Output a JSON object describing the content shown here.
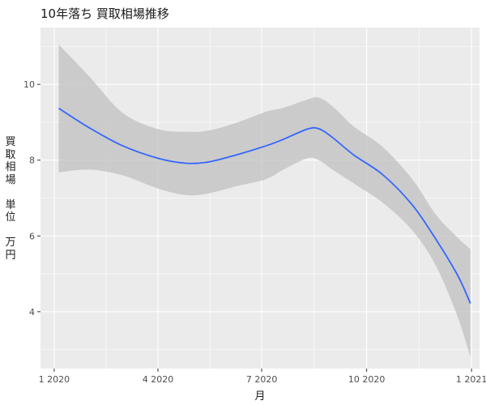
{
  "chart_data": {
    "type": "line",
    "title": "10年落ち 買取相場推移",
    "xlabel": "月",
    "ylabel": "買取相場　単位　万円",
    "x_ticks": [
      "1 2020",
      "4 2020",
      "7 2020",
      "10 2020",
      "1 2021"
    ],
    "x_domain": [
      "2019-12-20",
      "2021-01-08"
    ],
    "ylim": [
      2.5,
      11.5
    ],
    "y_ticks": [
      4,
      6,
      8,
      10
    ],
    "grid": true,
    "series": [
      {
        "color": "#3366FF",
        "points": [
          {
            "x": "2020-01-05",
            "y": 9.37
          },
          {
            "x": "2020-02-01",
            "y": 8.85
          },
          {
            "x": "2020-03-01",
            "y": 8.38
          },
          {
            "x": "2020-04-01",
            "y": 8.05
          },
          {
            "x": "2020-04-25",
            "y": 7.92
          },
          {
            "x": "2020-05-15",
            "y": 7.95
          },
          {
            "x": "2020-06-10",
            "y": 8.15
          },
          {
            "x": "2020-07-05",
            "y": 8.38
          },
          {
            "x": "2020-07-20",
            "y": 8.55
          },
          {
            "x": "2020-08-10",
            "y": 8.82
          },
          {
            "x": "2020-08-20",
            "y": 8.83
          },
          {
            "x": "2020-09-01",
            "y": 8.6
          },
          {
            "x": "2020-09-20",
            "y": 8.13
          },
          {
            "x": "2020-10-15",
            "y": 7.62
          },
          {
            "x": "2020-11-10",
            "y": 6.82
          },
          {
            "x": "2020-12-01",
            "y": 5.9
          },
          {
            "x": "2020-12-20",
            "y": 4.95
          },
          {
            "x": "2020-12-31",
            "y": 4.22
          }
        ],
        "ci_upper": [
          {
            "x": "2020-01-05",
            "y": 11.05
          },
          {
            "x": "2020-02-01",
            "y": 10.2
          },
          {
            "x": "2020-03-01",
            "y": 9.25
          },
          {
            "x": "2020-04-01",
            "y": 8.82
          },
          {
            "x": "2020-04-25",
            "y": 8.75
          },
          {
            "x": "2020-05-15",
            "y": 8.78
          },
          {
            "x": "2020-06-10",
            "y": 9.0
          },
          {
            "x": "2020-07-05",
            "y": 9.28
          },
          {
            "x": "2020-07-20",
            "y": 9.38
          },
          {
            "x": "2020-08-10",
            "y": 9.6
          },
          {
            "x": "2020-08-20",
            "y": 9.65
          },
          {
            "x": "2020-09-01",
            "y": 9.42
          },
          {
            "x": "2020-09-20",
            "y": 8.88
          },
          {
            "x": "2020-10-15",
            "y": 8.35
          },
          {
            "x": "2020-11-10",
            "y": 7.5
          },
          {
            "x": "2020-12-01",
            "y": 6.55
          },
          {
            "x": "2020-12-20",
            "y": 5.95
          },
          {
            "x": "2020-12-31",
            "y": 5.65
          }
        ],
        "ci_lower": [
          {
            "x": "2020-01-05",
            "y": 7.68
          },
          {
            "x": "2020-02-01",
            "y": 7.75
          },
          {
            "x": "2020-03-01",
            "y": 7.6
          },
          {
            "x": "2020-04-01",
            "y": 7.25
          },
          {
            "x": "2020-04-25",
            "y": 7.08
          },
          {
            "x": "2020-05-15",
            "y": 7.12
          },
          {
            "x": "2020-06-10",
            "y": 7.32
          },
          {
            "x": "2020-07-05",
            "y": 7.5
          },
          {
            "x": "2020-07-20",
            "y": 7.75
          },
          {
            "x": "2020-08-10",
            "y": 8.05
          },
          {
            "x": "2020-08-20",
            "y": 8.0
          },
          {
            "x": "2020-09-01",
            "y": 7.75
          },
          {
            "x": "2020-09-20",
            "y": 7.38
          },
          {
            "x": "2020-10-15",
            "y": 6.88
          },
          {
            "x": "2020-11-10",
            "y": 6.15
          },
          {
            "x": "2020-12-01",
            "y": 5.2
          },
          {
            "x": "2020-12-20",
            "y": 3.85
          },
          {
            "x": "2020-12-31",
            "y": 2.8
          }
        ]
      }
    ]
  },
  "colors": {
    "panel_background": "#EBEBEB",
    "major_grid": "#FFFFFF",
    "ribbon": "#BEBEBE",
    "line": "#3366FF"
  }
}
